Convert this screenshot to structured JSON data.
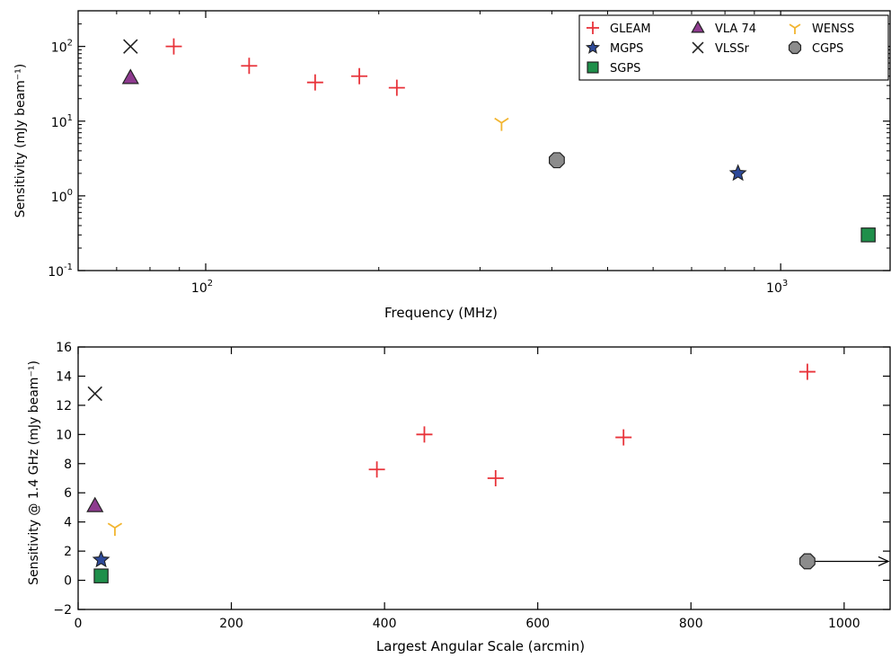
{
  "chart_data": [
    {
      "type": "scatter",
      "xlabel": "Frequency (MHz)",
      "ylabel": "Sensitivity (mJy beam⁻¹)",
      "xscale": "log",
      "yscale": "log",
      "xlim": [
        60,
        1550
      ],
      "ylim": [
        0.1,
        300
      ],
      "xticks": [
        {
          "value": 100,
          "base": "10",
          "exp": "2"
        },
        {
          "value": 1000,
          "base": "10",
          "exp": "3"
        }
      ],
      "yticks": [
        {
          "value": 0.1,
          "base": "10",
          "exp": "-1"
        },
        {
          "value": 1,
          "base": "10",
          "exp": "0"
        },
        {
          "value": 10,
          "base": "10",
          "exp": "1"
        },
        {
          "value": 100,
          "base": "10",
          "exp": "2"
        }
      ],
      "grid": false,
      "legend_position": "top-right",
      "series": [
        {
          "name": "GLEAM",
          "marker": "plus",
          "color": "#e8333a",
          "points": [
            [
              88,
              100
            ],
            [
              119,
              55
            ],
            [
              155,
              33
            ],
            [
              185,
              40
            ],
            [
              215,
              28
            ]
          ]
        },
        {
          "name": "VLA 74",
          "marker": "triangle",
          "color": "#8e3a8f",
          "points": [
            [
              74,
              38
            ]
          ]
        },
        {
          "name": "WENSS",
          "marker": "tri_down",
          "color": "#f2b530",
          "points": [
            [
              327,
              9.5
            ]
          ]
        },
        {
          "name": "MGPS",
          "marker": "star",
          "color": "#2e4a9a",
          "points": [
            [
              843,
              2
            ]
          ]
        },
        {
          "name": "VLSSr",
          "marker": "x",
          "color": "#222222",
          "points": [
            [
              74,
              100
            ]
          ]
        },
        {
          "name": "CGPS",
          "marker": "octagon",
          "color": "#8c8c8c",
          "points": [
            [
              408,
              3
            ]
          ]
        },
        {
          "name": "SGPS",
          "marker": "square",
          "color": "#1f8f4a",
          "points": [
            [
              1420,
              0.3
            ]
          ]
        }
      ]
    },
    {
      "type": "scatter",
      "xlabel": "Largest Angular Scale (arcmin)",
      "ylabel": "Sensitivity @ 1.4 GHz (mJy beam⁻¹)",
      "xlim": [
        0,
        1060
      ],
      "ylim": [
        -2,
        16
      ],
      "xticks": [
        0,
        200,
        400,
        600,
        800,
        1000
      ],
      "yticks": [
        -2,
        0,
        2,
        4,
        6,
        8,
        10,
        12,
        14,
        16
      ],
      "grid": false,
      "series": [
        {
          "name": "GLEAM",
          "marker": "plus",
          "color": "#e8333a",
          "points": [
            [
              390,
              7.6
            ],
            [
              452,
              10.0
            ],
            [
              545,
              7.0
            ],
            [
              712,
              9.8
            ],
            [
              952,
              14.3
            ]
          ]
        },
        {
          "name": "VLA 74",
          "marker": "triangle",
          "color": "#8e3a8f",
          "points": [
            [
              22,
              5.1
            ]
          ]
        },
        {
          "name": "WENSS",
          "marker": "tri_down",
          "color": "#f2b530",
          "points": [
            [
              48,
              3.6
            ]
          ]
        },
        {
          "name": "MGPS",
          "marker": "star",
          "color": "#2e4a9a",
          "points": [
            [
              30,
              1.4
            ]
          ]
        },
        {
          "name": "VLSSr",
          "marker": "x",
          "color": "#222222",
          "points": [
            [
              22,
              12.8
            ]
          ]
        },
        {
          "name": "CGPS",
          "marker": "octagon",
          "color": "#8c8c8c",
          "points": [
            [
              952,
              1.3
            ]
          ],
          "arrow_to": 1060
        },
        {
          "name": "SGPS",
          "marker": "square",
          "color": "#1f8f4a",
          "points": [
            [
              30,
              0.3
            ]
          ]
        }
      ]
    }
  ]
}
